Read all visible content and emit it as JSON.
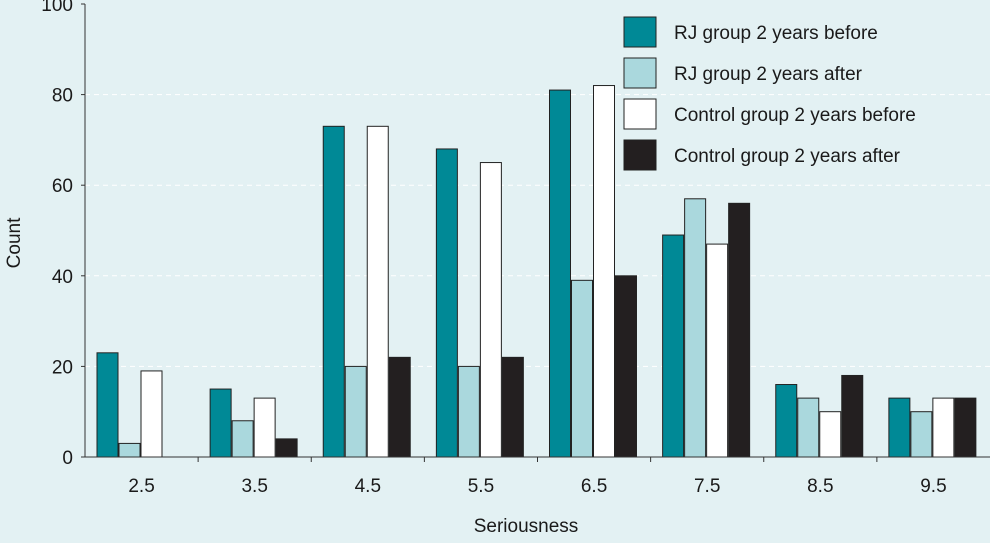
{
  "chart_data": {
    "type": "bar",
    "title": "",
    "xlabel": "Seriousness",
    "ylabel": "Count",
    "ylim": [
      0,
      100
    ],
    "yticks": [
      0,
      20,
      40,
      60,
      80,
      100
    ],
    "grid": true,
    "legend": "top-right",
    "categories": [
      "2.5",
      "3.5",
      "4.5",
      "5.5",
      "6.5",
      "7.5",
      "8.5",
      "9.5"
    ],
    "series": [
      {
        "name": "RJ group 2 years before",
        "color": "#008996",
        "values": [
          23,
          15,
          73,
          68,
          81,
          49,
          16,
          13
        ]
      },
      {
        "name": "RJ group 2 years after",
        "color": "#aad8dd",
        "values": [
          3,
          8,
          20,
          20,
          39,
          57,
          13,
          10
        ]
      },
      {
        "name": "Control group 2 years before",
        "color": "#ffffff",
        "values": [
          19,
          13,
          73,
          65,
          82,
          47,
          10,
          13
        ]
      },
      {
        "name": "Control group 2 years after",
        "color": "#231f20",
        "values": [
          0,
          4,
          22,
          22,
          40,
          56,
          18,
          13
        ]
      }
    ]
  }
}
